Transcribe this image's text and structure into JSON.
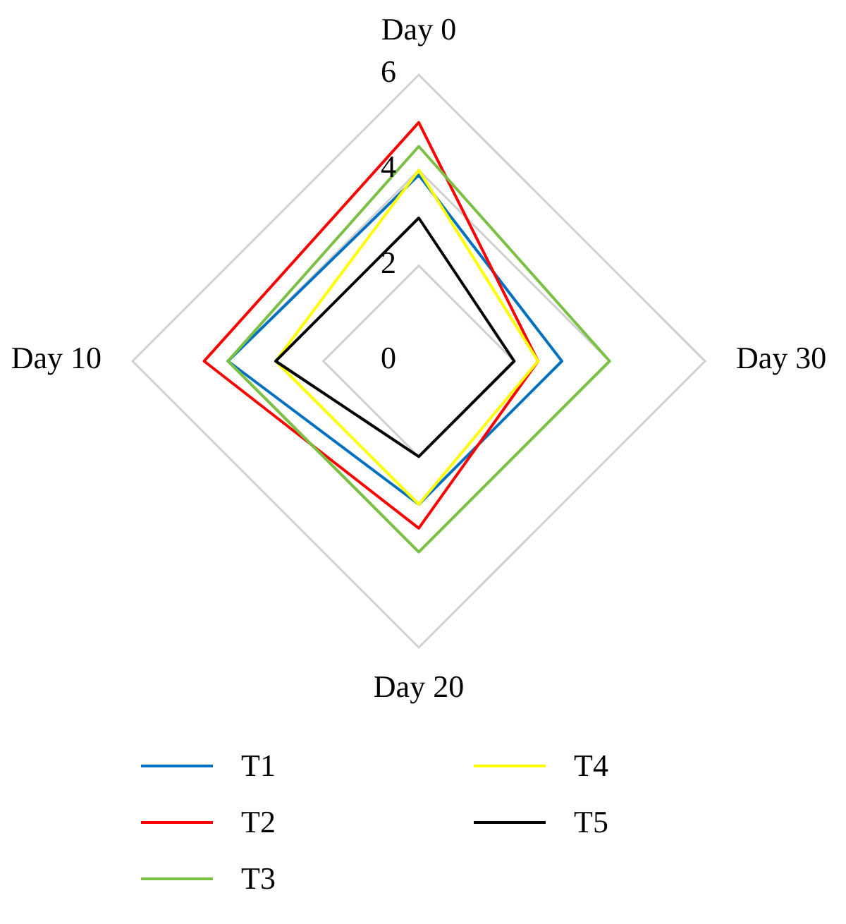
{
  "chart_data": {
    "type": "radar",
    "categories": [
      "Day 0",
      "Day 30",
      "Day 20",
      "Day 10"
    ],
    "series": [
      {
        "name": "T1",
        "color": "#0070c0",
        "values": [
          3.9,
          3,
          3,
          4
        ]
      },
      {
        "name": "T2",
        "color": "#ff0000",
        "values": [
          5,
          2.5,
          3.5,
          4.5
        ]
      },
      {
        "name": "T3",
        "color": "#7ac143",
        "values": [
          4.5,
          4,
          4,
          4
        ]
      },
      {
        "name": "T4",
        "color": "#ffff00",
        "values": [
          4,
          2.5,
          3,
          3
        ]
      },
      {
        "name": "T5",
        "color": "#000000",
        "values": [
          3,
          2,
          2,
          3
        ]
      }
    ],
    "ylim": [
      0,
      6
    ],
    "yticks": [
      0,
      2,
      4,
      6
    ],
    "grid": true,
    "legend": "bottom",
    "marker": "none",
    "line_style": "solid"
  }
}
